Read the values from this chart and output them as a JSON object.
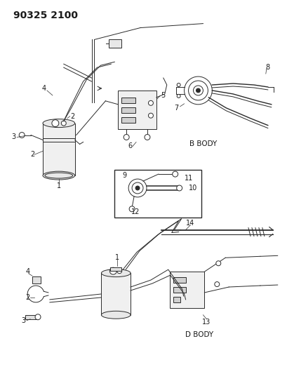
{
  "title": "90325 2100",
  "bg_color": "#ffffff",
  "line_color": "#2a2a2a",
  "text_color": "#1a1a1a",
  "title_fontsize": 10,
  "label_fontsize": 7,
  "fig_width": 4.09,
  "fig_height": 5.33,
  "dpi": 100,
  "b_body_label": "B BODY",
  "d_body_label": "D BODY"
}
